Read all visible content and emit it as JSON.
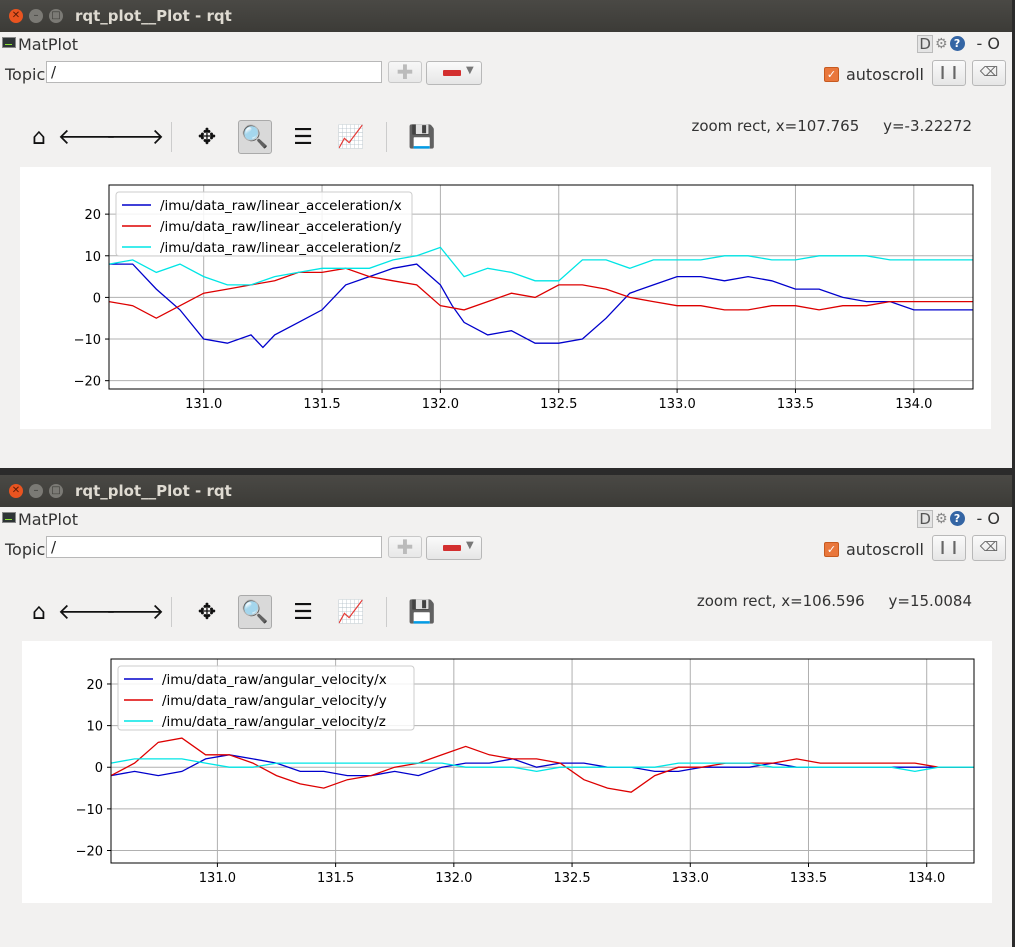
{
  "windows": [
    {
      "title": "rqt_plot__Plot - rqt",
      "plugin_label": "MatPlot",
      "help_d": "D",
      "help_q": "?",
      "options": "- O",
      "topic_label": "Topic",
      "topic_value": "/",
      "autoscroll_label": "autoscroll",
      "autoscroll_checked": true,
      "zoom_status": "zoom rect, x=107.765     y=-3.22272",
      "chart_data": {
        "type": "line",
        "xlim": [
          130.6,
          134.25
        ],
        "ylim": [
          -22,
          27
        ],
        "xticks": [
          131.0,
          131.5,
          132.0,
          132.5,
          133.0,
          133.5,
          134.0
        ],
        "xtick_labels": [
          "131.0",
          "131.5",
          "132.0",
          "132.5",
          "133.0",
          "133.5",
          "134.0"
        ],
        "yticks": [
          20,
          10,
          0,
          -10,
          -20
        ],
        "ytick_labels": [
          "20",
          "10",
          "0",
          "−10",
          "−20"
        ],
        "grid": true,
        "legend_position": "upper-left",
        "series": [
          {
            "name": "/imu/data_raw/linear_acceleration/x",
            "color": "#0000cc",
            "x": [
              130.6,
              130.7,
              130.8,
              130.9,
              131.0,
              131.1,
              131.2,
              131.25,
              131.3,
              131.4,
              131.5,
              131.6,
              131.7,
              131.8,
              131.9,
              132.0,
              132.05,
              132.1,
              132.2,
              132.3,
              132.4,
              132.5,
              132.6,
              132.7,
              132.8,
              132.9,
              133.0,
              133.1,
              133.2,
              133.3,
              133.4,
              133.5,
              133.6,
              133.7,
              133.8,
              133.9,
              134.0,
              134.1,
              134.25
            ],
            "y": [
              8,
              8,
              2,
              -3,
              -10,
              -11,
              -9,
              -12,
              -9,
              -6,
              -3,
              3,
              5,
              7,
              8,
              3,
              -2,
              -6,
              -9,
              -8,
              -11,
              -11,
              -10,
              -5,
              1,
              3,
              5,
              5,
              4,
              5,
              4,
              2,
              2,
              0,
              -1,
              -1,
              -3,
              -3,
              -3
            ]
          },
          {
            "name": "/imu/data_raw/linear_acceleration/y",
            "color": "#dd0000",
            "x": [
              130.6,
              130.7,
              130.8,
              130.9,
              131.0,
              131.1,
              131.2,
              131.3,
              131.4,
              131.5,
              131.6,
              131.7,
              131.8,
              131.9,
              132.0,
              132.1,
              132.2,
              132.3,
              132.4,
              132.5,
              132.6,
              132.7,
              132.8,
              132.9,
              133.0,
              133.1,
              133.2,
              133.3,
              133.4,
              133.5,
              133.6,
              133.7,
              133.8,
              133.9,
              134.0,
              134.1,
              134.25
            ],
            "y": [
              -1,
              -2,
              -5,
              -2,
              1,
              2,
              3,
              4,
              6,
              6,
              7,
              5,
              4,
              3,
              -2,
              -3,
              -1,
              1,
              0,
              3,
              3,
              2,
              0,
              -1,
              -2,
              -2,
              -3,
              -3,
              -2,
              -2,
              -3,
              -2,
              -2,
              -1,
              -1,
              -1,
              -1
            ]
          },
          {
            "name": "/imu/data_raw/linear_acceleration/z",
            "color": "#00e5e5",
            "x": [
              130.6,
              130.7,
              130.8,
              130.9,
              131.0,
              131.1,
              131.2,
              131.3,
              131.4,
              131.5,
              131.6,
              131.7,
              131.8,
              131.9,
              132.0,
              132.1,
              132.2,
              132.3,
              132.4,
              132.5,
              132.6,
              132.7,
              132.8,
              132.9,
              133.0,
              133.1,
              133.2,
              133.3,
              133.4,
              133.5,
              133.6,
              133.7,
              133.8,
              133.9,
              134.0,
              134.1,
              134.25
            ],
            "y": [
              8,
              9,
              6,
              8,
              5,
              3,
              3,
              5,
              6,
              7,
              7,
              7,
              9,
              10,
              12,
              5,
              7,
              6,
              4,
              4,
              9,
              9,
              7,
              9,
              9,
              9,
              10,
              10,
              9,
              9,
              10,
              10,
              10,
              9,
              9,
              9,
              9
            ]
          }
        ]
      }
    },
    {
      "title": "rqt_plot__Plot - rqt",
      "plugin_label": "MatPlot",
      "help_d": "D",
      "help_q": "?",
      "options": "- O",
      "topic_label": "Topic",
      "topic_value": "/",
      "autoscroll_label": "autoscroll",
      "autoscroll_checked": true,
      "zoom_status": "zoom rect, x=106.596     y=15.0084",
      "chart_data": {
        "type": "line",
        "xlim": [
          130.55,
          134.2
        ],
        "ylim": [
          -23,
          26
        ],
        "xticks": [
          131.0,
          131.5,
          132.0,
          132.5,
          133.0,
          133.5,
          134.0
        ],
        "xtick_labels": [
          "131.0",
          "131.5",
          "132.0",
          "132.5",
          "133.0",
          "133.5",
          "134.0"
        ],
        "yticks": [
          20,
          10,
          0,
          -10,
          -20
        ],
        "ytick_labels": [
          "20",
          "10",
          "0",
          "−10",
          "−20"
        ],
        "grid": true,
        "legend_position": "upper-left",
        "series": [
          {
            "name": "/imu/data_raw/angular_velocity/x",
            "color": "#0000cc",
            "x": [
              130.55,
              130.65,
              130.75,
              130.85,
              130.95,
              131.05,
              131.15,
              131.25,
              131.35,
              131.45,
              131.55,
              131.65,
              131.75,
              131.85,
              131.95,
              132.05,
              132.15,
              132.25,
              132.35,
              132.45,
              132.55,
              132.65,
              132.75,
              132.85,
              132.95,
              133.05,
              133.15,
              133.25,
              133.35,
              133.45,
              133.55,
              133.65,
              133.75,
              133.85,
              133.95,
              134.05,
              134.2
            ],
            "y": [
              -2,
              -1,
              -2,
              -1,
              2,
              3,
              2,
              1,
              -1,
              -1,
              -2,
              -2,
              -1,
              -2,
              0,
              1,
              1,
              2,
              0,
              1,
              1,
              0,
              0,
              -1,
              -1,
              0,
              0,
              0,
              1,
              0,
              0,
              0,
              0,
              0,
              0,
              0,
              0
            ]
          },
          {
            "name": "/imu/data_raw/angular_velocity/y",
            "color": "#dd0000",
            "x": [
              130.55,
              130.65,
              130.75,
              130.85,
              130.95,
              131.05,
              131.15,
              131.25,
              131.35,
              131.45,
              131.55,
              131.65,
              131.75,
              131.85,
              131.95,
              132.05,
              132.15,
              132.25,
              132.35,
              132.45,
              132.55,
              132.65,
              132.75,
              132.85,
              132.95,
              133.05,
              133.15,
              133.25,
              133.35,
              133.45,
              133.55,
              133.65,
              133.75,
              133.85,
              133.95,
              134.05,
              134.2
            ],
            "y": [
              -2,
              1,
              6,
              7,
              3,
              3,
              1,
              -2,
              -4,
              -5,
              -3,
              -2,
              0,
              1,
              3,
              5,
              3,
              2,
              2,
              1,
              -3,
              -5,
              -6,
              -2,
              0,
              0,
              1,
              1,
              1,
              2,
              1,
              1,
              1,
              1,
              1,
              0,
              0
            ]
          },
          {
            "name": "/imu/data_raw/angular_velocity/z",
            "color": "#00e5e5",
            "x": [
              130.55,
              130.65,
              130.75,
              130.85,
              130.95,
              131.05,
              131.15,
              131.25,
              131.35,
              131.45,
              131.55,
              131.65,
              131.75,
              131.85,
              131.95,
              132.05,
              132.15,
              132.25,
              132.35,
              132.45,
              132.55,
              132.65,
              132.75,
              132.85,
              132.95,
              133.05,
              133.15,
              133.25,
              133.35,
              133.45,
              133.55,
              133.65,
              133.75,
              133.85,
              133.95,
              134.05,
              134.2
            ],
            "y": [
              1,
              2,
              2,
              2,
              1,
              0,
              0,
              1,
              1,
              1,
              1,
              1,
              1,
              1,
              1,
              0,
              0,
              0,
              -1,
              0,
              0,
              0,
              0,
              0,
              1,
              1,
              1,
              1,
              0,
              0,
              0,
              0,
              0,
              0,
              -1,
              0,
              0
            ]
          }
        ]
      }
    }
  ],
  "toolbar": {
    "icons": [
      "home-icon",
      "back-arrow-icon",
      "forward-arrow-icon",
      "pan-icon",
      "zoom-icon",
      "subplots-icon",
      "edit-axis-icon",
      "save-icon"
    ]
  }
}
